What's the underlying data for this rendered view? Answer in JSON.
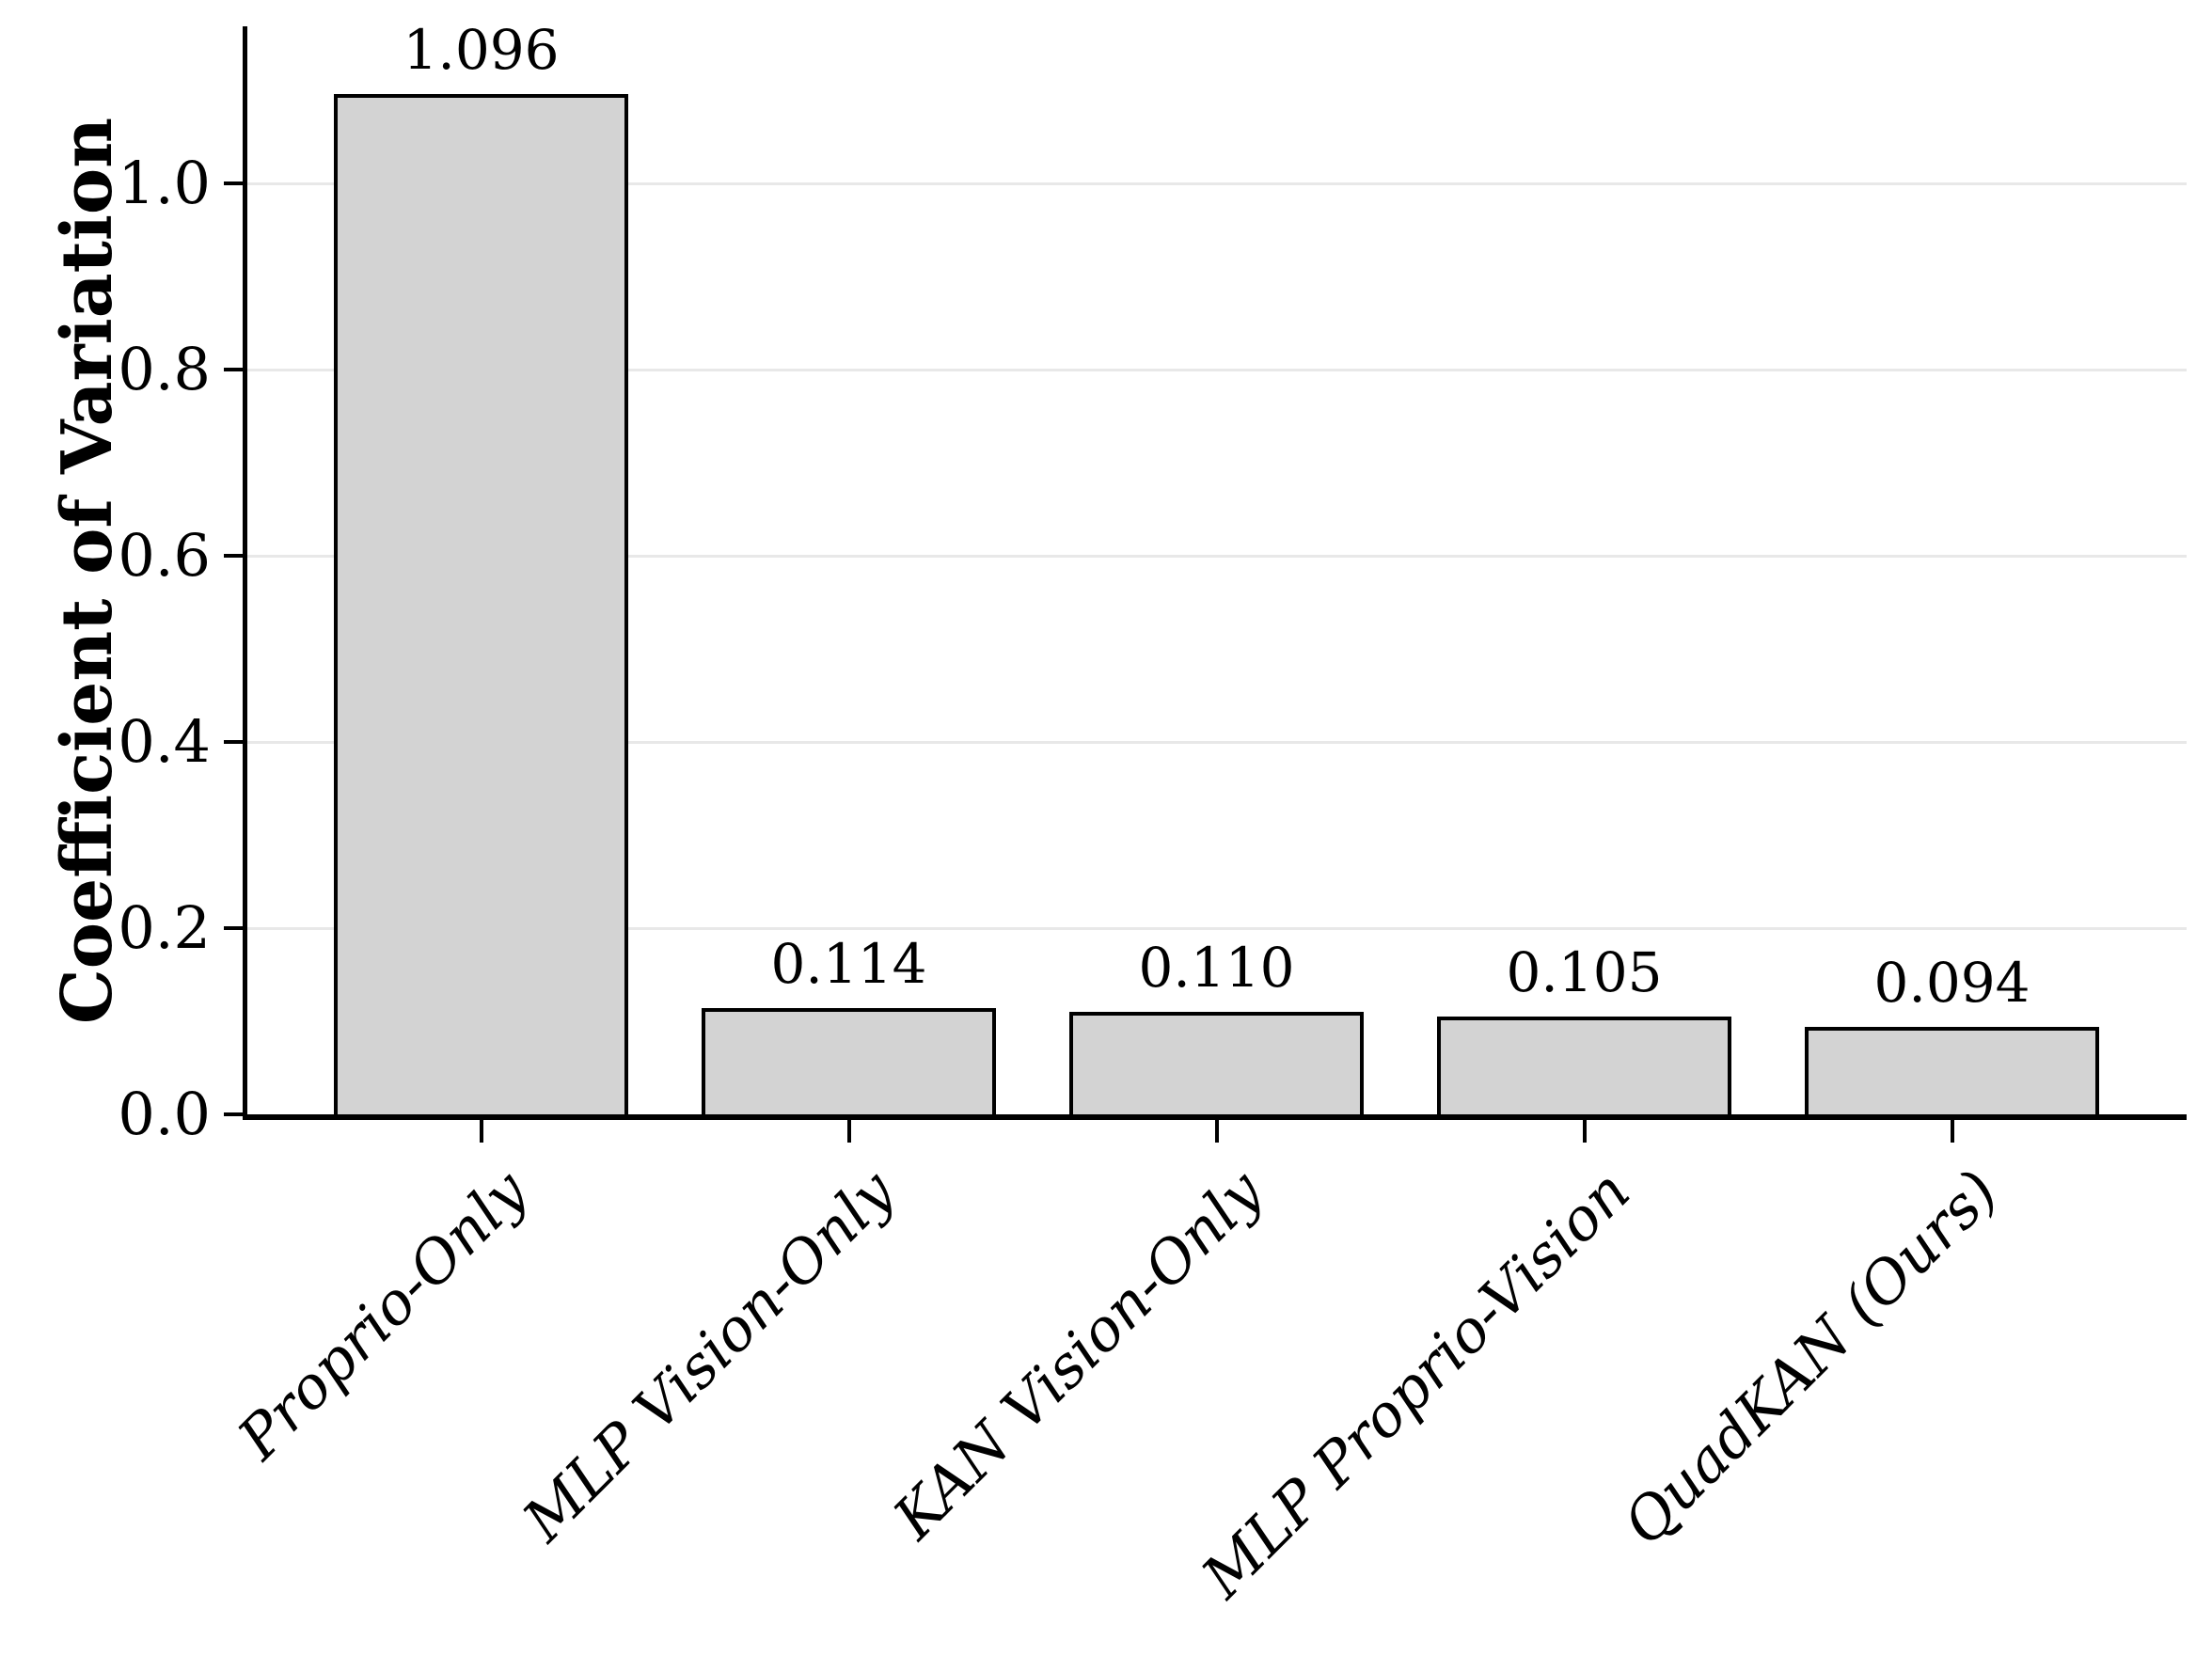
{
  "chart_data": {
    "type": "bar",
    "title": "",
    "xlabel": "",
    "ylabel": "Coefficient of Variation",
    "categories": [
      "Proprio-Only",
      "MLP Vision-Only",
      "KAN Vision-Only",
      "MLP Proprio-Vision",
      "QuadKAN (Ours)"
    ],
    "values": [
      1.096,
      0.114,
      0.11,
      0.105,
      0.094
    ],
    "bar_labels": [
      "1.096",
      "0.114",
      "0.110",
      "0.105",
      "0.094"
    ],
    "yticks": [
      0.0,
      0.2,
      0.4,
      0.6,
      0.8,
      1.0
    ],
    "ytick_labels": [
      "0.0",
      "0.2",
      "0.4",
      "0.6",
      "0.8",
      "1.0"
    ],
    "ylim": [
      0,
      1.169
    ],
    "grid": "horizontal-major",
    "legend": "none",
    "bar_style": {
      "fill": "#d3d3d3",
      "edge": "#000000",
      "grid_line": "#e8e8e8",
      "axis": "#000000",
      "text": "#000000",
      "background": "#ffffff"
    }
  }
}
